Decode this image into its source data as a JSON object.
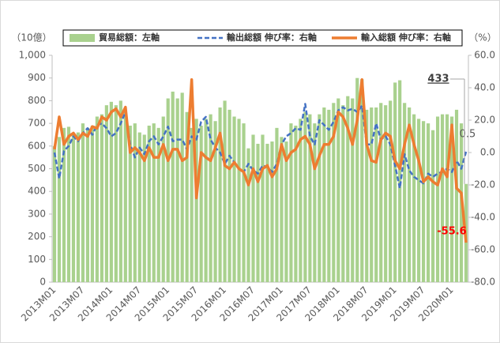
{
  "chart_data": {
    "type": "combo",
    "y_unit": "（10億）",
    "y2_unit": "（%）",
    "categories": [
      "2013M01",
      null,
      null,
      null,
      null,
      null,
      "2013M07",
      null,
      null,
      null,
      null,
      null,
      "2014M01",
      null,
      null,
      null,
      null,
      null,
      "2014M07",
      null,
      null,
      null,
      null,
      null,
      "2015M01",
      null,
      null,
      null,
      null,
      null,
      "2015M07",
      null,
      null,
      null,
      null,
      null,
      "2016M01",
      null,
      null,
      null,
      null,
      null,
      "2016M07",
      null,
      null,
      null,
      null,
      null,
      "2017M01",
      null,
      null,
      null,
      null,
      null,
      "2017M07",
      null,
      null,
      null,
      null,
      null,
      "2018M01",
      null,
      null,
      null,
      null,
      null,
      "2018M07",
      null,
      null,
      null,
      null,
      null,
      "2019M01",
      null,
      null,
      null,
      null,
      null,
      "2019M07",
      null,
      null,
      null,
      null,
      null,
      "2020M01",
      null,
      null,
      null
    ],
    "series": [
      {
        "name": "貿易総額：左軸",
        "type": "bar",
        "color": "#a9d18e",
        "values": [
          600,
          640,
          680,
          685,
          650,
          660,
          700,
          680,
          690,
          730,
          740,
          780,
          795,
          780,
          800,
          750,
          690,
          700,
          660,
          650,
          690,
          700,
          680,
          730,
          810,
          840,
          810,
          835,
          750,
          680,
          720,
          690,
          720,
          740,
          710,
          770,
          800,
          760,
          730,
          720,
          700,
          590,
          650,
          610,
          650,
          610,
          620,
          680,
          640,
          620,
          700,
          690,
          720,
          750,
          740,
          700,
          740,
          770,
          760,
          790,
          810,
          780,
          820,
          810,
          900,
          895,
          760,
          770,
          770,
          790,
          780,
          800,
          880,
          890,
          790,
          770,
          740,
          720,
          710,
          700,
          670,
          730,
          740,
          740,
          730,
          760,
          700,
          433
        ]
      },
      {
        "name": "輸出総額 伸び率：右軸",
        "type": "line",
        "axis": "y2",
        "dash": true,
        "color": "#4472c4",
        "values": [
          0,
          -16,
          1,
          4,
          10,
          7,
          12,
          15,
          11,
          17,
          18,
          15,
          10,
          12,
          18,
          25,
          5,
          -3,
          3,
          -1,
          7,
          10,
          5,
          10,
          16,
          7,
          8,
          8,
          2,
          10,
          8,
          19,
          22,
          8,
          3,
          0,
          -7,
          -2,
          -6,
          -10,
          -12,
          -7,
          -11,
          -13,
          -8,
          -9,
          -12,
          -7,
          5,
          10,
          12,
          15,
          14,
          30,
          10,
          5,
          20,
          17,
          14,
          19,
          26,
          28,
          26,
          27,
          25,
          29,
          5,
          5,
          18,
          8,
          10,
          5,
          -8,
          -22,
          -1,
          -11,
          -15,
          -17,
          -19,
          -13,
          -15,
          -13,
          -12,
          -10,
          -12,
          -5,
          -10,
          0.5
        ]
      },
      {
        "name": "輸入総額 伸び率：右軸",
        "type": "line",
        "axis": "y2",
        "dash": false,
        "color": "#ed7d31",
        "values": [
          2,
          22,
          5,
          10,
          12,
          8,
          12,
          10,
          16,
          15,
          22,
          20,
          25,
          27,
          22,
          28,
          0,
          3,
          0,
          -5,
          3,
          -3,
          -3,
          5,
          -5,
          2,
          2,
          -5,
          -3,
          45,
          -28,
          0,
          -3,
          -5,
          3,
          12,
          -8,
          -10,
          -6,
          -10,
          -12,
          -20,
          -10,
          -18,
          -10,
          -8,
          -15,
          -10,
          5,
          -5,
          0,
          2,
          8,
          10,
          5,
          -10,
          -2,
          5,
          5,
          10,
          25,
          22,
          15,
          5,
          20,
          45,
          5,
          -5,
          -6,
          8,
          12,
          10,
          -5,
          -10,
          5,
          17,
          5,
          -5,
          -18,
          -15,
          -18,
          -20,
          -10,
          -15,
          17,
          -22,
          -25,
          -55.6
        ]
      }
    ],
    "ylim": [
      0,
      1000
    ],
    "yticks": [
      0,
      100,
      200,
      300,
      400,
      500,
      600,
      700,
      800,
      900,
      {
        "value": 1000,
        "label": "1,000"
      }
    ],
    "y2lim": [
      -80,
      60
    ],
    "y2ticks": [
      {
        "value": -80,
        "label": "-80.0"
      },
      {
        "value": -60,
        "label": "-60.0"
      },
      {
        "value": -40,
        "label": "-40.0"
      },
      {
        "value": -20,
        "label": "-20.0"
      },
      {
        "value": 0,
        "label": "0.0"
      },
      {
        "value": 20,
        "label": "20.0"
      },
      {
        "value": 40,
        "label": "40.0"
      },
      {
        "value": 60,
        "label": "60.0"
      }
    ],
    "grid": false,
    "annotations": [
      {
        "text": "433",
        "series": 0,
        "index": 87,
        "color": "#404040"
      },
      {
        "text": "0.5",
        "series": 1,
        "index": 87,
        "color": "#595959"
      },
      {
        "text": "-55.6",
        "series": 2,
        "index": 87,
        "color": "#ff0000"
      }
    ]
  }
}
